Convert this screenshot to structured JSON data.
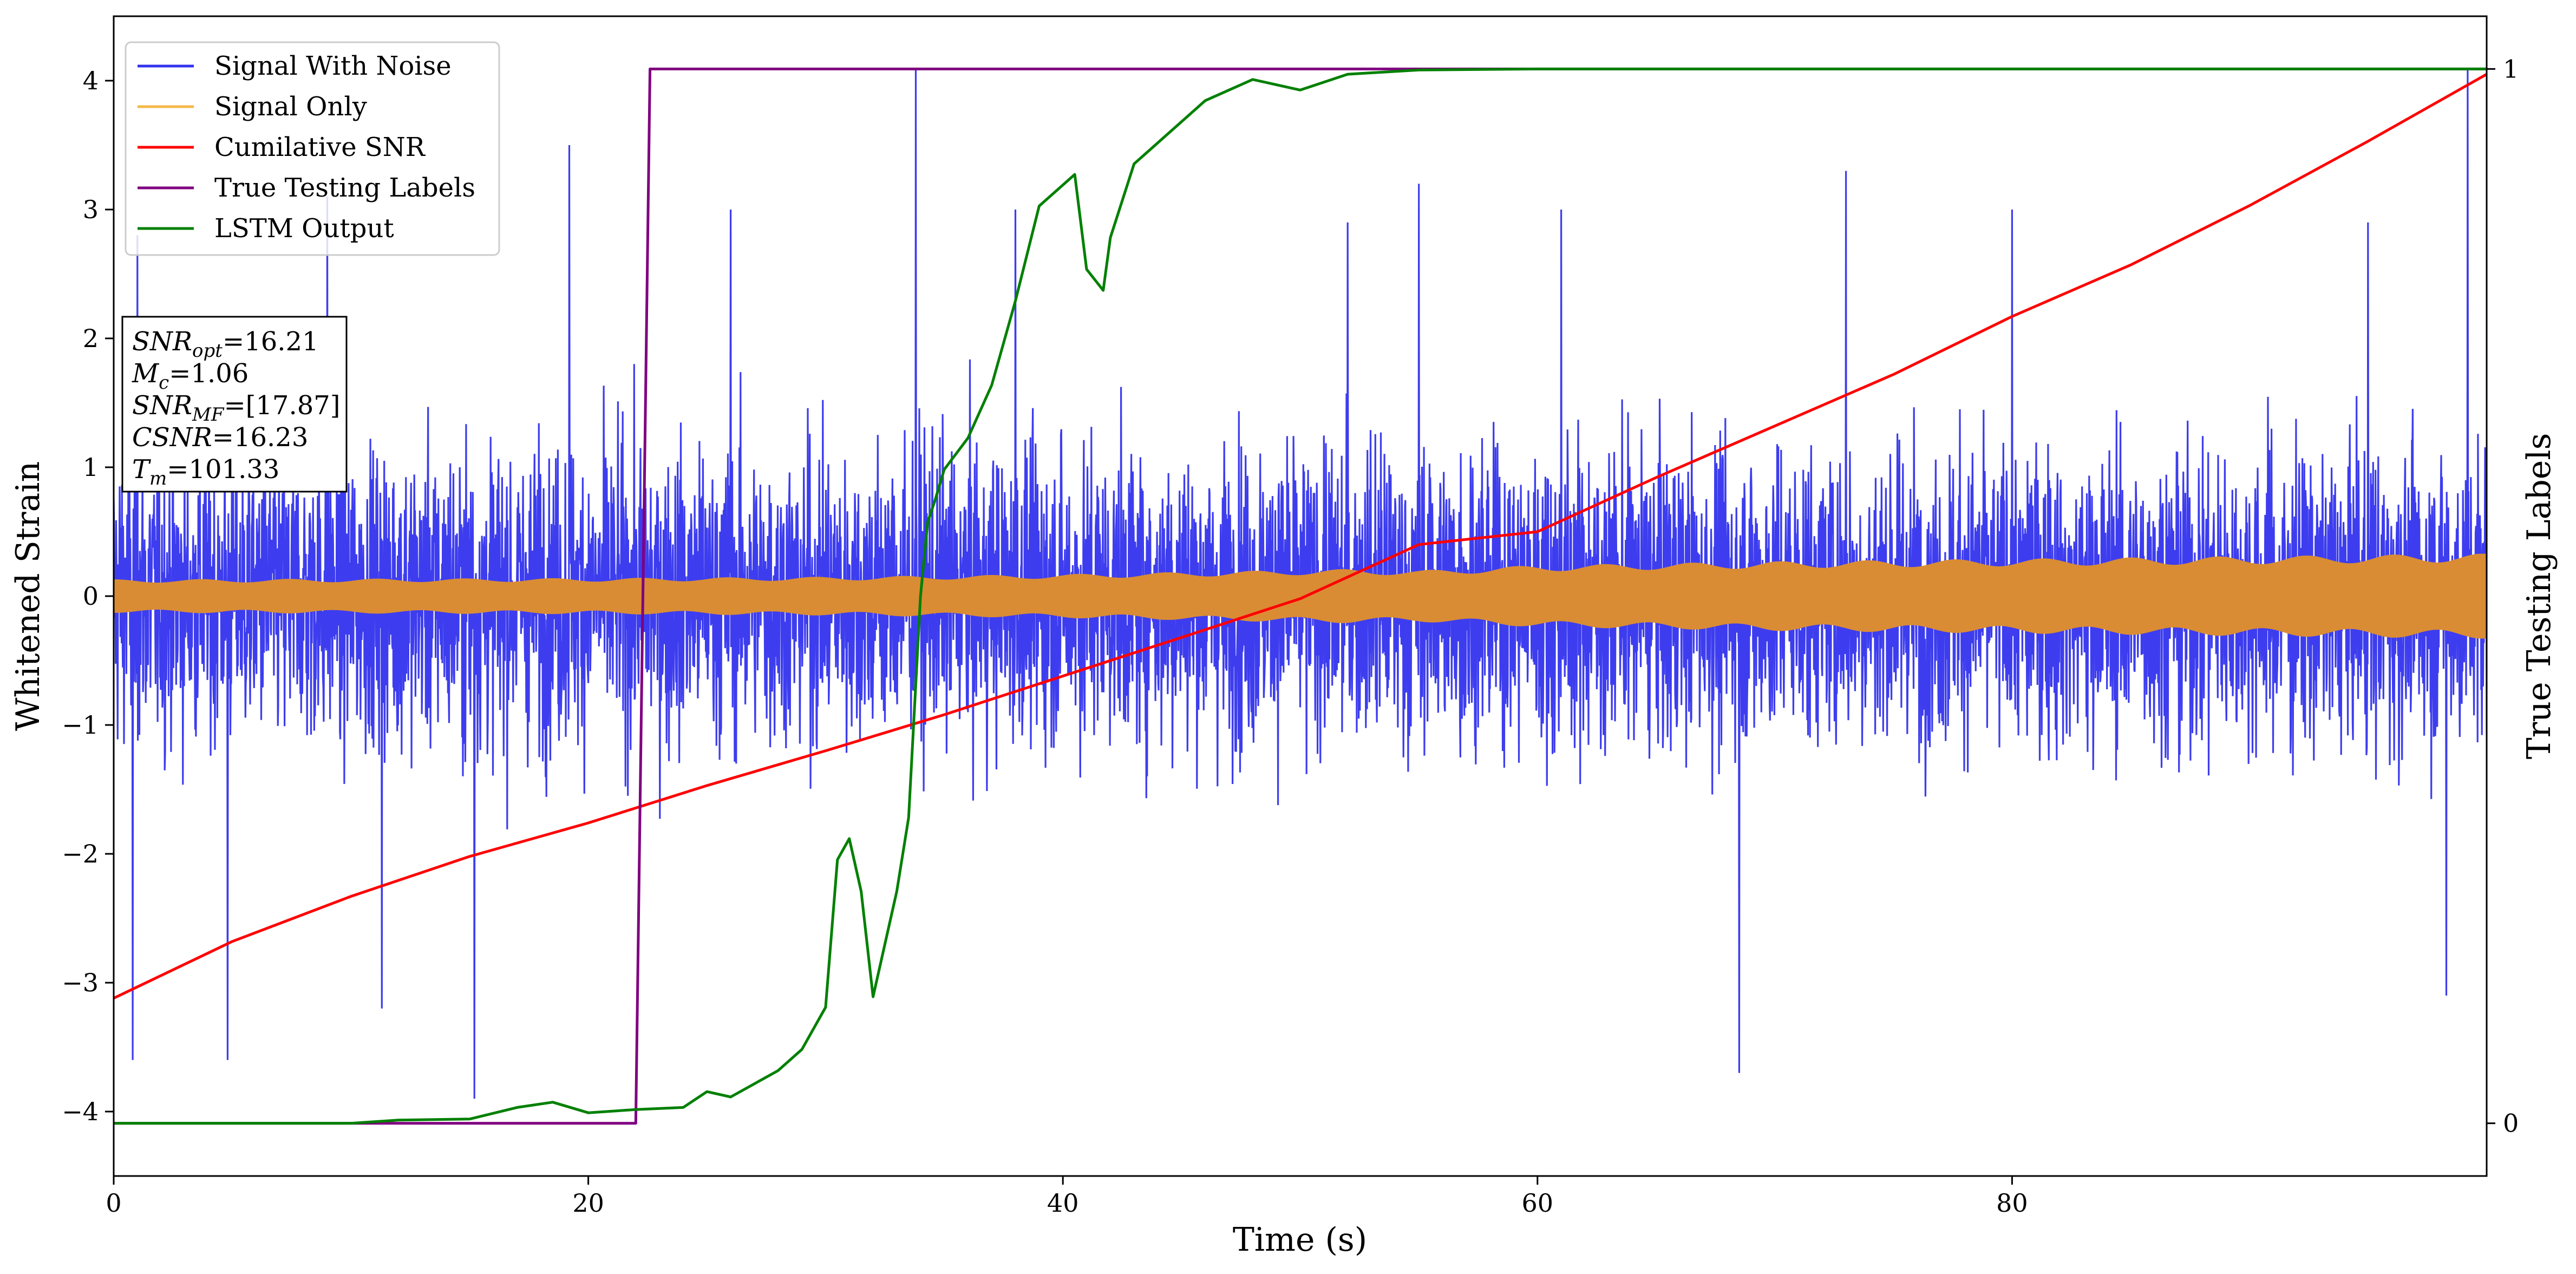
{
  "chart_data": {
    "type": "line",
    "xlabel": "Time (s)",
    "ylabel": "Whitened Strain",
    "y2label": "True Testing Labels",
    "xlim": [
      0,
      100
    ],
    "ylim": [
      -4.5,
      4.5
    ],
    "y2lim": [
      -0.05,
      1.05
    ],
    "x_ticks": [
      "0",
      "20",
      "40",
      "60",
      "80"
    ],
    "x_tick_values": [
      0,
      20,
      40,
      60,
      80
    ],
    "y_ticks": [
      "−4",
      "−3",
      "−2",
      "−1",
      "0",
      "1",
      "2",
      "3",
      "4"
    ],
    "y_tick_values": [
      -4,
      -3,
      -2,
      -1,
      0,
      1,
      2,
      3,
      4
    ],
    "y2_ticks": [
      "0",
      "1"
    ],
    "y2_tick_values": [
      0,
      1
    ],
    "grid": false,
    "legend_position": "top-left",
    "legend": [
      {
        "label": "Signal With Noise",
        "color": "#3333ee"
      },
      {
        "label": "Signal Only",
        "color": "#f4b84a"
      },
      {
        "label": "Cumilative SNR",
        "color": "#ff0000"
      },
      {
        "label": "True Testing Labels",
        "color": "#800080"
      },
      {
        "label": "LSTM Output",
        "color": "#008000"
      }
    ],
    "annotation": [
      {
        "base": "SNR",
        "sub": "opt",
        "value": "=16.21"
      },
      {
        "base": "M",
        "sub": "c",
        "value": "=1.06"
      },
      {
        "base": "SNR",
        "sub": "MF",
        "value": "=[17.87]"
      },
      {
        "base": "CSNR",
        "sub": "",
        "value": "=16.23"
      },
      {
        "base": "T",
        "sub": "m",
        "value": "=101.33"
      }
    ],
    "series": [
      {
        "name": "Signal With Noise",
        "color": "#3333ee",
        "axis": "left",
        "noise_band": [
          -2.1,
          2.1
        ],
        "peak_spikes": [
          {
            "x": 1.0,
            "y": 2.8
          },
          {
            "x": 0.8,
            "y": -3.6
          },
          {
            "x": 4.8,
            "y": -3.6
          },
          {
            "x": 9.0,
            "y": 3.1
          },
          {
            "x": 11.3,
            "y": -3.2
          },
          {
            "x": 15.2,
            "y": -3.9
          },
          {
            "x": 19.2,
            "y": 3.5
          },
          {
            "x": 26.0,
            "y": 3.0
          },
          {
            "x": 33.8,
            "y": 4.1
          },
          {
            "x": 38.0,
            "y": 3.0
          },
          {
            "x": 52.0,
            "y": 2.9
          },
          {
            "x": 55.0,
            "y": 3.2
          },
          {
            "x": 61.0,
            "y": 3.0
          },
          {
            "x": 68.5,
            "y": -3.7
          },
          {
            "x": 73.0,
            "y": 3.3
          },
          {
            "x": 80.0,
            "y": 3.0
          },
          {
            "x": 95.0,
            "y": 2.9
          },
          {
            "x": 99.2,
            "y": 4.1
          },
          {
            "x": 98.3,
            "y": -3.1
          }
        ]
      },
      {
        "name": "Signal Only",
        "color": "#f4b84a",
        "axis": "left",
        "envelope_x": [
          0,
          20,
          30,
          40,
          52,
          55,
          60,
          70,
          80,
          90,
          100
        ],
        "envelope_amp": [
          0.13,
          0.14,
          0.15,
          0.17,
          0.21,
          0.2,
          0.24,
          0.27,
          0.29,
          0.31,
          0.33
        ]
      },
      {
        "name": "Cumilative SNR",
        "color": "#ff0000",
        "axis": "left",
        "x": [
          0,
          5,
          10,
          15,
          20,
          25,
          30,
          35,
          40,
          45,
          50,
          55,
          60,
          65,
          70,
          75,
          80,
          85,
          90,
          95,
          100
        ],
        "y": [
          -3.12,
          -2.68,
          -2.33,
          -2.02,
          -1.76,
          -1.47,
          -1.2,
          -0.92,
          -0.62,
          -0.32,
          -0.02,
          0.4,
          0.5,
          0.92,
          1.32,
          1.72,
          2.17,
          2.57,
          3.03,
          3.53,
          4.05
        ]
      },
      {
        "name": "True Testing Labels",
        "color": "#800080",
        "axis": "right",
        "x": [
          0,
          22.0,
          22.6,
          100
        ],
        "y": [
          0,
          0,
          1,
          1
        ]
      },
      {
        "name": "LSTM Output",
        "color": "#008000",
        "axis": "right",
        "x": [
          0,
          5,
          10,
          12,
          15,
          17,
          18.5,
          20,
          22,
          24,
          25,
          26,
          28,
          29,
          30,
          30.5,
          31,
          31.5,
          32,
          32.5,
          33,
          33.5,
          34,
          34.3,
          34.6,
          35,
          36,
          37,
          38,
          39,
          40,
          40.5,
          41,
          41.7,
          42,
          43,
          44,
          45,
          46,
          47,
          48,
          50,
          52,
          55,
          60,
          65,
          100
        ],
        "y": [
          0,
          0,
          0,
          0.003,
          0.004,
          0.015,
          0.02,
          0.01,
          0.013,
          0.015,
          0.03,
          0.025,
          0.05,
          0.07,
          0.11,
          0.25,
          0.27,
          0.22,
          0.12,
          0.17,
          0.22,
          0.29,
          0.5,
          0.57,
          0.59,
          0.62,
          0.65,
          0.7,
          0.78,
          0.87,
          0.89,
          0.9,
          0.81,
          0.79,
          0.84,
          0.91,
          0.93,
          0.95,
          0.97,
          0.98,
          0.99,
          0.98,
          0.995,
          0.999,
          1.0,
          1.0,
          1.0
        ]
      }
    ]
  }
}
